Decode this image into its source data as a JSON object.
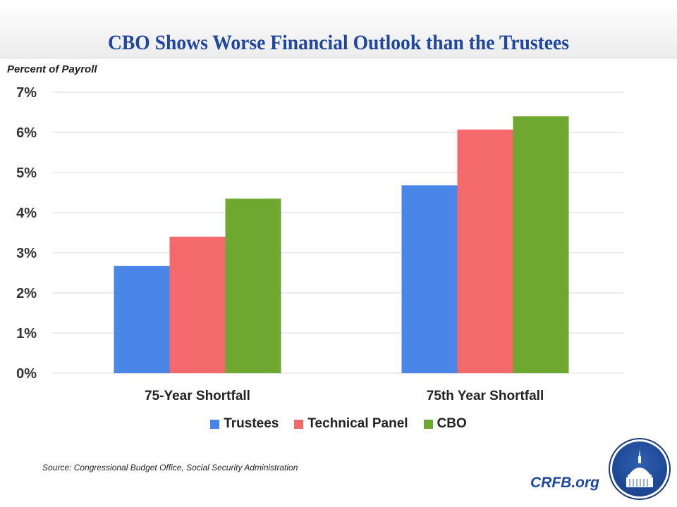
{
  "header": {
    "title": "CBO Shows Worse Financial Outlook than the Trustees"
  },
  "chart_data": {
    "type": "bar",
    "title": "CBO Shows Worse Financial Outlook than the Trustees",
    "xlabel": "",
    "ylabel": "Percent of Payroll",
    "ylim": [
      0,
      7
    ],
    "yticks": [
      "0%",
      "1%",
      "2%",
      "3%",
      "4%",
      "5%",
      "6%",
      "7%"
    ],
    "grid": true,
    "legend_position": "bottom",
    "categories": [
      "75-Year Shortfall",
      "75th Year Shortfall"
    ],
    "series": [
      {
        "name": "Trustees",
        "color": "#4a86e8",
        "values": [
          2.67,
          4.68
        ]
      },
      {
        "name": "Technical Panel",
        "color": "#f4696b",
        "values": [
          3.4,
          6.07
        ]
      },
      {
        "name": "CBO",
        "color": "#6ea830",
        "values": [
          4.35,
          6.4
        ]
      }
    ]
  },
  "footer": {
    "source": "Source: Congressional Budget Office, Social Security Administration",
    "brand": "CRFB.org"
  }
}
